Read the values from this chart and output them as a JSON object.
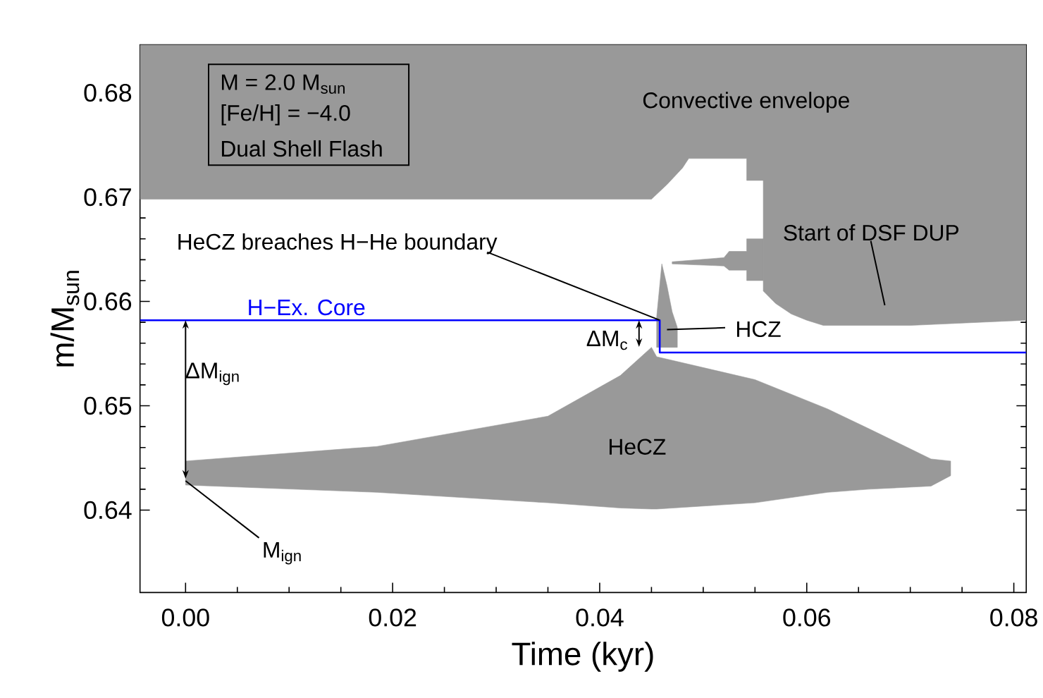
{
  "chart_data": {
    "type": "line",
    "xlabel": "Time (kyr)",
    "ylabel": "m/M$_{sun}$",
    "xlim": [
      -0.0044,
      0.0812
    ],
    "ylim": [
      0.6321,
      0.6846
    ],
    "xticks": [
      {
        "value": 0,
        "label": "0.00"
      },
      {
        "value": 0.02,
        "label": "0.02"
      },
      {
        "value": 0.04,
        "label": "0.04"
      },
      {
        "value": 0.06,
        "label": "0.06"
      },
      {
        "value": 0.08,
        "label": "0.08"
      }
    ],
    "yticks": [
      0.64,
      0.65,
      0.66,
      0.67,
      0.68
    ],
    "grid": false,
    "series": [
      {
        "color": "#999999",
        "x": [
          -0.0044,
          0.045,
          0.0465,
          0.048,
          0.0486,
          0.0542,
          0.0542,
          0.0558,
          0.0558,
          0.057,
          0.0585,
          0.06,
          0.0616,
          0.07,
          0.0812
        ],
        "values": [
          null,
          null,
          null,
          null,
          null,
          null,
          null,
          null,
          null,
          null,
          null,
          null,
          null,
          null,
          null
        ],
        "upper": [
          0.6846,
          0.6846,
          0.6846,
          0.6846,
          0.6846,
          0.6846,
          0.6846,
          0.6846,
          0.6846,
          0.6846,
          0.6846,
          0.6846,
          0.6846,
          0.6846,
          0.6846
        ],
        "lower": [
          0.6698,
          0.6698,
          0.6712,
          0.6728,
          0.6737,
          0.6737,
          0.6716,
          0.6716,
          0.661,
          0.6598,
          0.6588,
          0.6582,
          0.6577,
          0.6577,
          0.6582
        ]
      },
      {
        "color": "#999999",
        "x": [
          0.047,
          0.052,
          0.0525,
          0.0542,
          0.0542,
          0.0558
        ],
        "values": [
          null,
          null,
          null,
          null,
          null,
          null
        ],
        "upper": [
          0.6638,
          0.6642,
          0.6648,
          0.6648,
          0.666,
          0.666
        ],
        "lower": [
          0.6636,
          0.6634,
          0.663,
          0.663,
          0.662,
          0.662
        ]
      },
      {
        "color": "#999999",
        "x": [
          0.0455,
          0.046,
          0.0465,
          0.047,
          0.0475
        ],
        "values": [
          null,
          null,
          null,
          null,
          null
        ],
        "upper": [
          0.6585,
          0.6636,
          0.6615,
          0.659,
          0.6575
        ],
        "lower": [
          0.6556,
          0.6556,
          0.6556,
          0.6556,
          0.6556
        ]
      },
      {
        "color": "#999999",
        "x": [
          0.0,
          0.0185,
          0.035,
          0.042,
          0.045,
          0.0455,
          0.055,
          0.062,
          0.066,
          0.072,
          0.0739
        ],
        "values": [
          null,
          null,
          null,
          null,
          null,
          null,
          null,
          null,
          null,
          null,
          null
        ],
        "upper": [
          0.6447,
          0.6461,
          0.649,
          0.6529,
          0.6556,
          0.6547,
          0.6525,
          0.6497,
          0.6478,
          0.6449,
          0.6447
        ],
        "lower": [
          0.6424,
          0.6417,
          0.6407,
          0.6402,
          0.6401,
          0.6401,
          0.6407,
          0.6417,
          0.642,
          0.6423,
          0.6433
        ]
      },
      {
        "name": "H−Ex. Core",
        "color": "#0000ff",
        "x": [
          -0.0044,
          0.0458,
          0.0458,
          0.0812
        ],
        "values": [
          0.6582,
          0.6582,
          0.6551,
          0.6551
        ]
      }
    ],
    "annotations": [
      "M = 2.0 M$_{sun}$",
      "[Fe/H] = −4.0",
      "Dual Shell Flash",
      "Convective envelope",
      "Start of DSF DUP",
      {
        "text": "HeCZ breaches H−He boundary",
        "x": 0.0458,
        "y": 0.6582
      },
      {
        "text": "HCZ",
        "x": 0.0465,
        "y": 0.6573
      },
      "HeCZ",
      {
        "text": "ΔM$_{c}$",
        "x": 0.0438,
        "y": 0.6582
      },
      {
        "text": "ΔM$_{ign}$",
        "x": 0.0,
        "y": 0.6582
      },
      {
        "text": "M$_{ign}$",
        "x": 0.0,
        "y": 0.6428
      }
    ]
  }
}
